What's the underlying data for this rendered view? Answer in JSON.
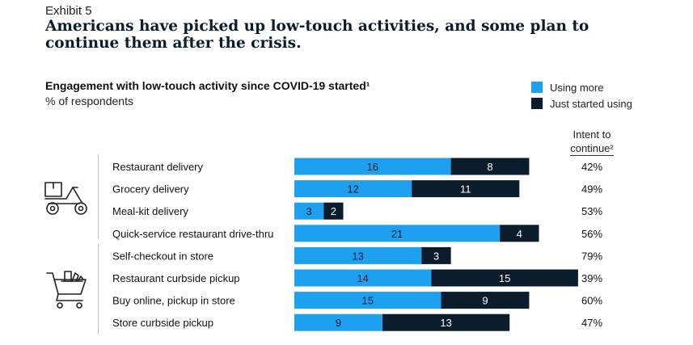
{
  "exhibit": "Exhibit 5",
  "headline": "Americans have picked up low-touch activities, and some plan to continue them after the crisis.",
  "colors": {
    "using_more": "#1ea0f0",
    "just_started": "#0b1c2c",
    "label_light": "#0b1c2c",
    "label_dark": "#ffffff"
  },
  "icons": {
    "group1": "delivery-scooter-icon",
    "group2": "shopping-cart-icon"
  },
  "legend": {
    "items": [
      "Using more",
      "Just started using"
    ]
  },
  "intent": {
    "header_line1": "Intent to",
    "header_line2": "continue²"
  },
  "chart_data": {
    "type": "bar",
    "orientation": "horizontal",
    "stacked": true,
    "title": "Engagement with low-touch activity since COVID-19 started¹",
    "subtitle": "% of respondents",
    "categories": [
      "Restaurant delivery",
      "Grocery delivery",
      "Meal-kit delivery",
      "Quick-service restaurant drive-thru",
      "Self-checkout in store",
      "Restaurant curbside pickup",
      "Buy online, pickup in store",
      "Store curbside pickup"
    ],
    "series": [
      {
        "name": "Using more",
        "values": [
          16,
          12,
          3,
          21,
          13,
          14,
          15,
          9
        ]
      },
      {
        "name": "Just started using",
        "values": [
          8,
          11,
          2,
          4,
          3,
          15,
          9,
          13
        ]
      }
    ],
    "intent_to_continue": [
      "42%",
      "49%",
      "53%",
      "56%",
      "79%",
      "39%",
      "60%",
      "47%"
    ],
    "legend_position": "top-right",
    "grid": false
  }
}
